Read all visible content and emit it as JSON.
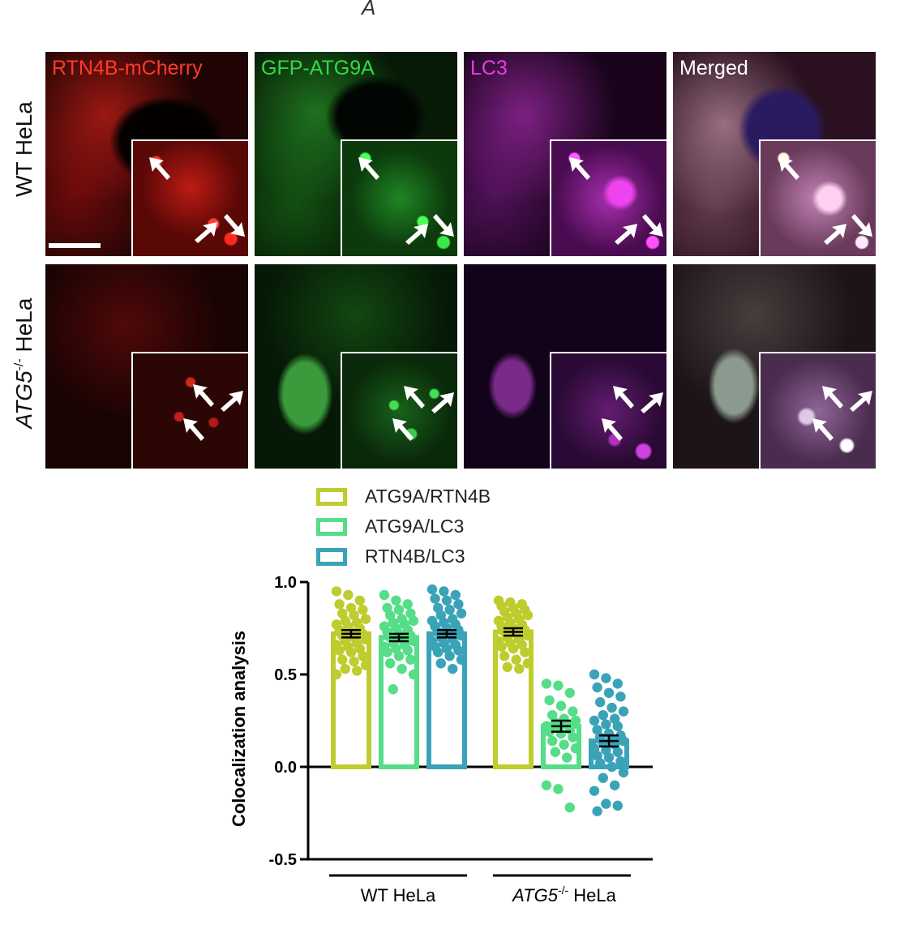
{
  "figure": {
    "stray_mark": "A",
    "rows": [
      {
        "id": "wt",
        "label": "WT HeLa"
      },
      {
        "id": "atg5",
        "label_italic": "ATG5",
        "label_sup": "-/-",
        "label_rest": " HeLa"
      }
    ],
    "channels": [
      {
        "name": "RTN4B-mCherry",
        "color": "#ff3b2a"
      },
      {
        "name": "GFP-ATG9A",
        "color": "#33d94a"
      },
      {
        "name": "LC3",
        "color": "#e23ee6"
      },
      {
        "name": "Merged",
        "color": "#ffffff"
      }
    ]
  },
  "legend": [
    {
      "label": "ATG9A/RTN4B",
      "color": "#bfcc2e"
    },
    {
      "label": "ATG9A/LC3",
      "color": "#55dd88"
    },
    {
      "label": "RTN4B/LC3",
      "color": "#3aa3b8"
    }
  ],
  "chart_data": {
    "type": "bar",
    "ylabel": "Colocalization analysis",
    "ylim": [
      -0.5,
      1.0
    ],
    "yticks": [
      "1.0",
      "0.5",
      "0.0",
      "-0.5"
    ],
    "ytick_values": [
      1.0,
      0.5,
      0.0,
      -0.5
    ],
    "groups": [
      {
        "label": "WT HeLa"
      },
      {
        "label_italic": "ATG5",
        "label_sup": "-/-",
        "label_rest": " HeLa"
      }
    ],
    "series": [
      {
        "name": "ATG9A/RTN4B",
        "color": "#bfcc2e",
        "values": [
          0.72,
          0.73
        ],
        "sem": [
          0.02,
          0.02
        ],
        "points": [
          [
            0.95,
            0.93,
            0.9,
            0.88,
            0.86,
            0.85,
            0.83,
            0.82,
            0.8,
            0.79,
            0.78,
            0.77,
            0.76,
            0.75,
            0.74,
            0.73,
            0.72,
            0.71,
            0.7,
            0.69,
            0.68,
            0.67,
            0.66,
            0.65,
            0.64,
            0.63,
            0.62,
            0.6,
            0.58,
            0.57,
            0.55,
            0.53,
            0.52,
            0.5
          ],
          [
            0.9,
            0.89,
            0.88,
            0.87,
            0.86,
            0.85,
            0.84,
            0.83,
            0.82,
            0.81,
            0.8,
            0.79,
            0.78,
            0.77,
            0.76,
            0.75,
            0.74,
            0.73,
            0.72,
            0.71,
            0.7,
            0.69,
            0.68,
            0.67,
            0.66,
            0.65,
            0.64,
            0.62,
            0.6,
            0.58,
            0.56,
            0.54,
            0.53
          ]
        ]
      },
      {
        "name": "ATG9A/LC3",
        "color": "#55dd88",
        "values": [
          0.7,
          0.22
        ],
        "sem": [
          0.02,
          0.03
        ],
        "points": [
          [
            0.93,
            0.9,
            0.88,
            0.86,
            0.85,
            0.83,
            0.82,
            0.8,
            0.79,
            0.78,
            0.77,
            0.76,
            0.75,
            0.74,
            0.73,
            0.72,
            0.71,
            0.7,
            0.69,
            0.68,
            0.67,
            0.66,
            0.65,
            0.64,
            0.63,
            0.62,
            0.6,
            0.58,
            0.56,
            0.53,
            0.5,
            0.42
          ],
          [
            0.45,
            0.44,
            0.4,
            0.36,
            0.33,
            0.3,
            0.28,
            0.26,
            0.25,
            0.24,
            0.23,
            0.22,
            0.21,
            0.2,
            0.19,
            0.18,
            0.16,
            0.14,
            0.12,
            0.1,
            0.08,
            0.05,
            -0.1,
            -0.12,
            -0.22
          ]
        ]
      },
      {
        "name": "RTN4B/LC3",
        "color": "#3aa3b8",
        "values": [
          0.72,
          0.14
        ],
        "sem": [
          0.02,
          0.03
        ],
        "points": [
          [
            0.96,
            0.95,
            0.93,
            0.91,
            0.9,
            0.88,
            0.86,
            0.85,
            0.83,
            0.82,
            0.8,
            0.79,
            0.78,
            0.77,
            0.76,
            0.75,
            0.74,
            0.73,
            0.72,
            0.71,
            0.7,
            0.69,
            0.68,
            0.67,
            0.66,
            0.65,
            0.64,
            0.63,
            0.62,
            0.6,
            0.58,
            0.56,
            0.53
          ],
          [
            0.5,
            0.48,
            0.45,
            0.43,
            0.4,
            0.38,
            0.35,
            0.32,
            0.3,
            0.28,
            0.26,
            0.25,
            0.23,
            0.22,
            0.2,
            0.18,
            0.17,
            0.16,
            0.15,
            0.14,
            0.13,
            0.12,
            0.1,
            0.09,
            0.08,
            0.06,
            0.05,
            0.03,
            0.02,
            0.0,
            -0.03,
            -0.06,
            -0.1,
            -0.13,
            -0.2,
            -0.21,
            -0.24
          ]
        ]
      }
    ]
  }
}
